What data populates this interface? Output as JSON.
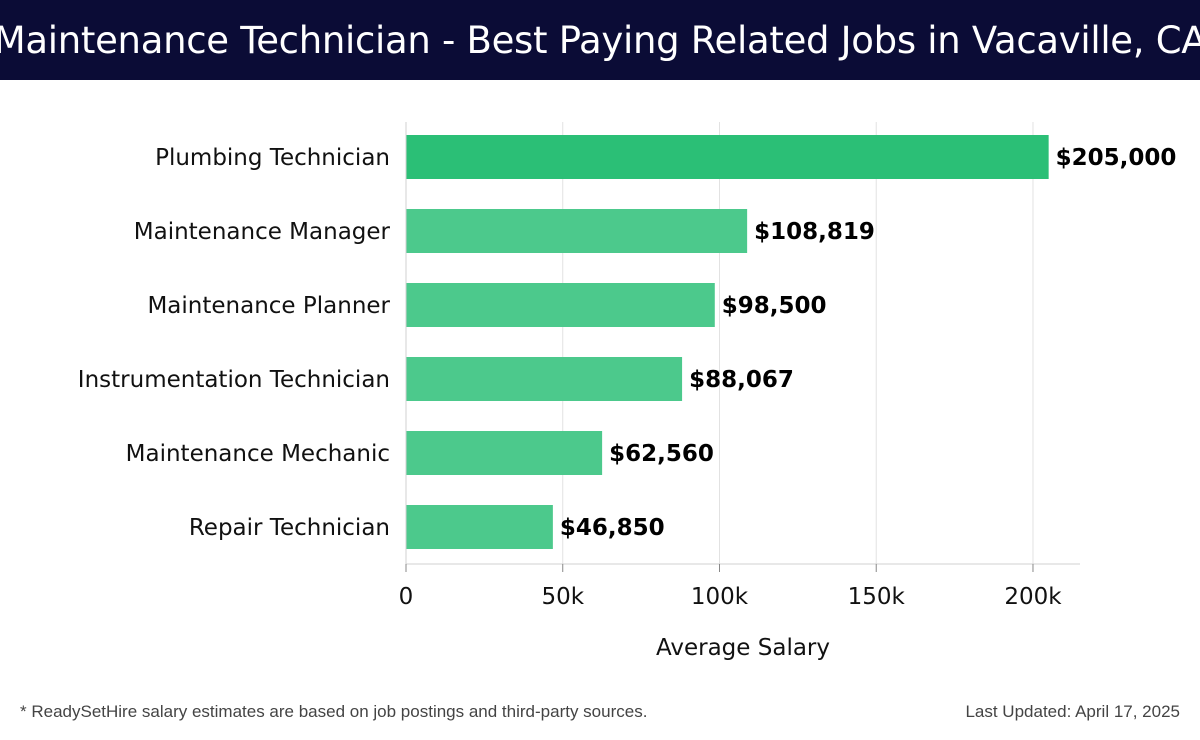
{
  "header": {
    "title": "Maintenance Technician - Best Paying Related Jobs in Vacaville, CA"
  },
  "chart_data": {
    "type": "bar",
    "orientation": "horizontal",
    "categories": [
      "Plumbing Technician",
      "Maintenance Manager",
      "Maintenance Planner",
      "Instrumentation Technician",
      "Maintenance Mechanic",
      "Repair Technician"
    ],
    "values": [
      205000,
      108819,
      98500,
      88067,
      62560,
      46850
    ],
    "value_labels": [
      "$205,000",
      "$108,819",
      "$98,500",
      "$88,067",
      "$62,560",
      "$46,850"
    ],
    "xlabel": "Average Salary",
    "ylabel": "",
    "xlim": [
      0,
      215000
    ],
    "xticks": [
      0,
      50000,
      100000,
      150000,
      200000
    ],
    "xtick_labels": [
      "0",
      "50k",
      "100k",
      "150k",
      "200k"
    ],
    "grid": true,
    "colors": {
      "top_bar": "#2bbf76",
      "bars": "#4cc98c"
    }
  },
  "footer": {
    "note": "* ReadySetHire salary estimates are based on job postings and third-party sources.",
    "updated": "Last Updated: April 17, 2025"
  }
}
